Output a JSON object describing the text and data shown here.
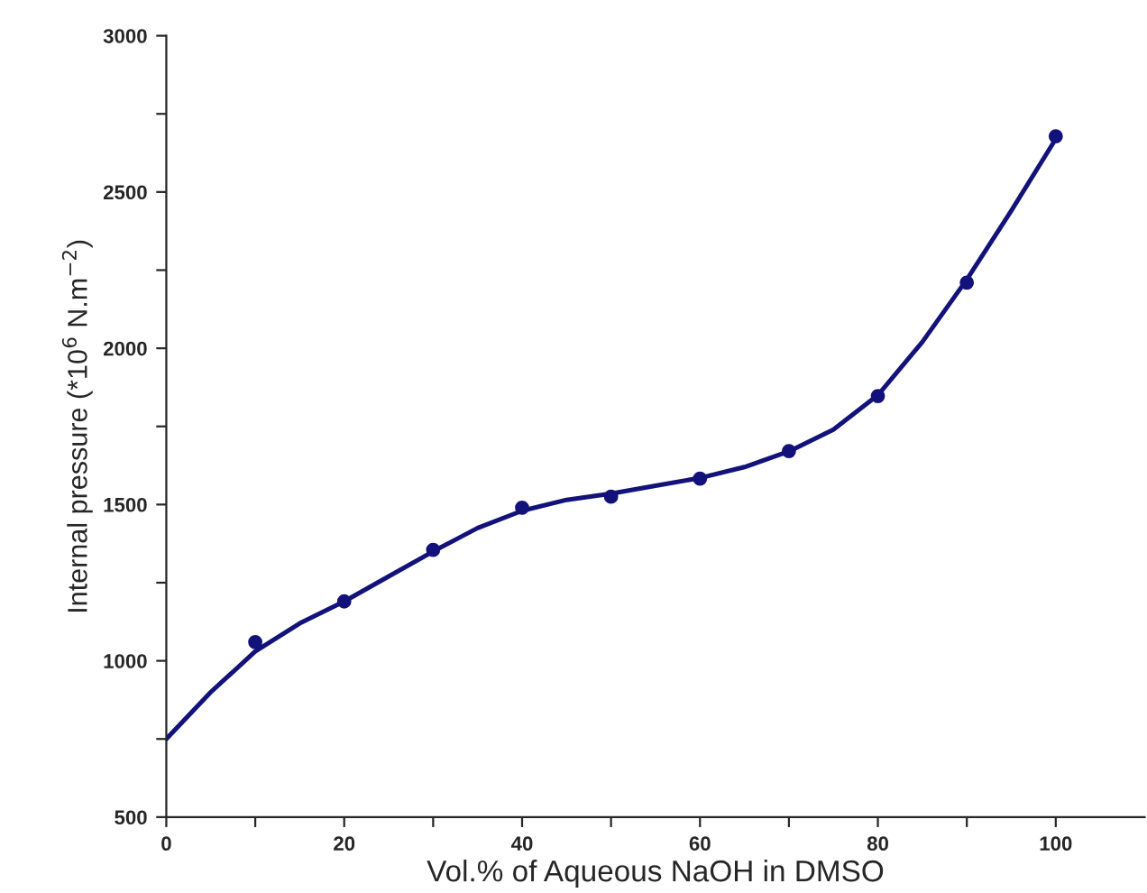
{
  "chart_data": {
    "type": "scatter",
    "xlabel": "Vol.% of Aqueous NaOH in DMSO",
    "ylabel": "Internal pressure (*10$^{6}$ N.m$^{−2}$)",
    "xlim": [
      0,
      110
    ],
    "ylim": [
      500,
      3000
    ],
    "xticks": [
      0,
      {
        "value": 10,
        "label": null
      },
      20,
      {
        "value": 30,
        "label": null
      },
      40,
      {
        "value": 50,
        "label": null
      },
      60,
      {
        "value": 70,
        "label": null
      },
      80,
      {
        "value": 90,
        "label": null
      },
      100
    ],
    "yticks": [
      500,
      {
        "value": 750,
        "label": null
      },
      1000,
      {
        "value": 1250,
        "label": null
      },
      1500,
      {
        "value": 1750,
        "label": null
      },
      2000,
      {
        "value": 2250,
        "label": null
      },
      2500,
      {
        "value": 2750,
        "label": null
      },
      3000
    ],
    "grid": false,
    "legend": false,
    "series": [
      {
        "color": "#12127a",
        "marker": "circle",
        "x": [
          10,
          20,
          30,
          40,
          50,
          60,
          70,
          80,
          90,
          100
        ],
        "values": [
          1060,
          1190,
          1355,
          1490,
          1525,
          1583,
          1671,
          1847,
          2210,
          2678
        ]
      },
      {
        "type": "line",
        "color": "#12127a",
        "marker": "none",
        "line_style": "solid",
        "x": [
          0,
          5,
          10,
          15,
          20,
          25,
          30,
          35,
          40,
          45,
          50,
          55,
          60,
          65,
          70,
          75,
          80,
          85,
          90,
          95,
          100
        ],
        "values": [
          750,
          900,
          1030,
          1120,
          1190,
          1270,
          1350,
          1425,
          1480,
          1515,
          1535,
          1560,
          1585,
          1620,
          1670,
          1740,
          1850,
          2020,
          2220,
          2440,
          2670
        ]
      }
    ]
  }
}
